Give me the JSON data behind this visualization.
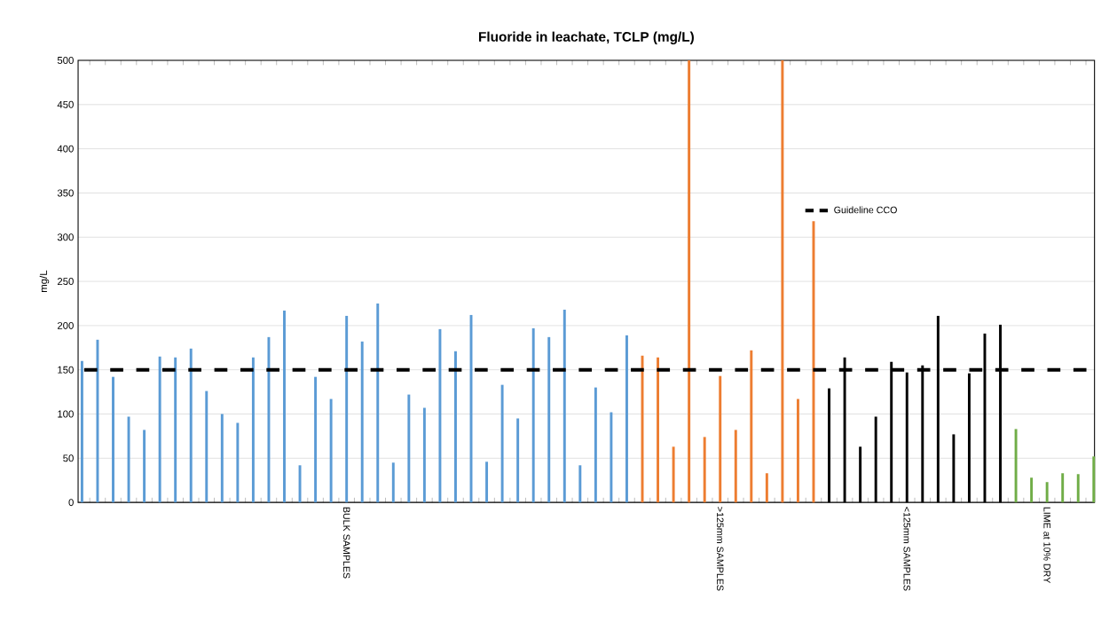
{
  "chart_data": {
    "type": "bar",
    "title": "Fluoride in leachate, TCLP (mg/L)",
    "ylabel": "mg/L",
    "categories": [
      null,
      null,
      null,
      null,
      null,
      null,
      null,
      null,
      null,
      null,
      null,
      null,
      null,
      null,
      null,
      null,
      null,
      "BULK SAMPLES",
      null,
      null,
      null,
      null,
      null,
      null,
      null,
      null,
      null,
      null,
      null,
      null,
      null,
      null,
      null,
      null,
      null,
      null,
      null,
      null,
      null,
      null,
      null,
      ">125mm SAMPLES",
      null,
      null,
      null,
      null,
      null,
      null,
      null,
      null,
      null,
      null,
      null,
      "<125mm SAMPLES",
      null,
      null,
      null,
      null,
      null,
      null,
      null,
      null,
      "LIME at 10% DRY",
      null,
      null,
      null
    ],
    "values": [
      160,
      184,
      142,
      97,
      82,
      165,
      164,
      174,
      126,
      100,
      90,
      164,
      187,
      217,
      42,
      142,
      117,
      211,
      182,
      225,
      45,
      122,
      107,
      196,
      171,
      212,
      46,
      133,
      95,
      197,
      187,
      218,
      42,
      130,
      102,
      189,
      166,
      164,
      63,
      500,
      74,
      143,
      82,
      172,
      33,
      500,
      117,
      318,
      129,
      164,
      63,
      97,
      159,
      147,
      155,
      211,
      77,
      146,
      191,
      201,
      83,
      28,
      23,
      33,
      32,
      52
    ],
    "colors": [
      "#5b9bd5",
      "#5b9bd5",
      "#5b9bd5",
      "#5b9bd5",
      "#5b9bd5",
      "#5b9bd5",
      "#5b9bd5",
      "#5b9bd5",
      "#5b9bd5",
      "#5b9bd5",
      "#5b9bd5",
      "#5b9bd5",
      "#5b9bd5",
      "#5b9bd5",
      "#5b9bd5",
      "#5b9bd5",
      "#5b9bd5",
      "#5b9bd5",
      "#5b9bd5",
      "#5b9bd5",
      "#5b9bd5",
      "#5b9bd5",
      "#5b9bd5",
      "#5b9bd5",
      "#5b9bd5",
      "#5b9bd5",
      "#5b9bd5",
      "#5b9bd5",
      "#5b9bd5",
      "#5b9bd5",
      "#5b9bd5",
      "#5b9bd5",
      "#5b9bd5",
      "#5b9bd5",
      "#5b9bd5",
      "#5b9bd5",
      "#ed7d31",
      "#ed7d31",
      "#ed7d31",
      "#ed7d31",
      "#ed7d31",
      "#ed7d31",
      "#ed7d31",
      "#ed7d31",
      "#ed7d31",
      "#ed7d31",
      "#ed7d31",
      "#ed7d31",
      "#000000",
      "#000000",
      "#000000",
      "#000000",
      "#000000",
      "#000000",
      "#000000",
      "#000000",
      "#000000",
      "#000000",
      "#000000",
      "#000000",
      "#70ad47",
      "#70ad47",
      "#70ad47",
      "#70ad47",
      "#70ad47",
      "#70ad47"
    ],
    "ylim": [
      0,
      500
    ],
    "yticks": [
      0,
      50,
      100,
      150,
      200,
      250,
      300,
      350,
      400,
      450,
      500
    ],
    "grid": "y",
    "ref_lines": [
      {
        "axis": "y",
        "value": 150,
        "label": "Guideline CCO",
        "color": "#000000",
        "line_style": "dashed"
      }
    ],
    "legend": "top right"
  }
}
